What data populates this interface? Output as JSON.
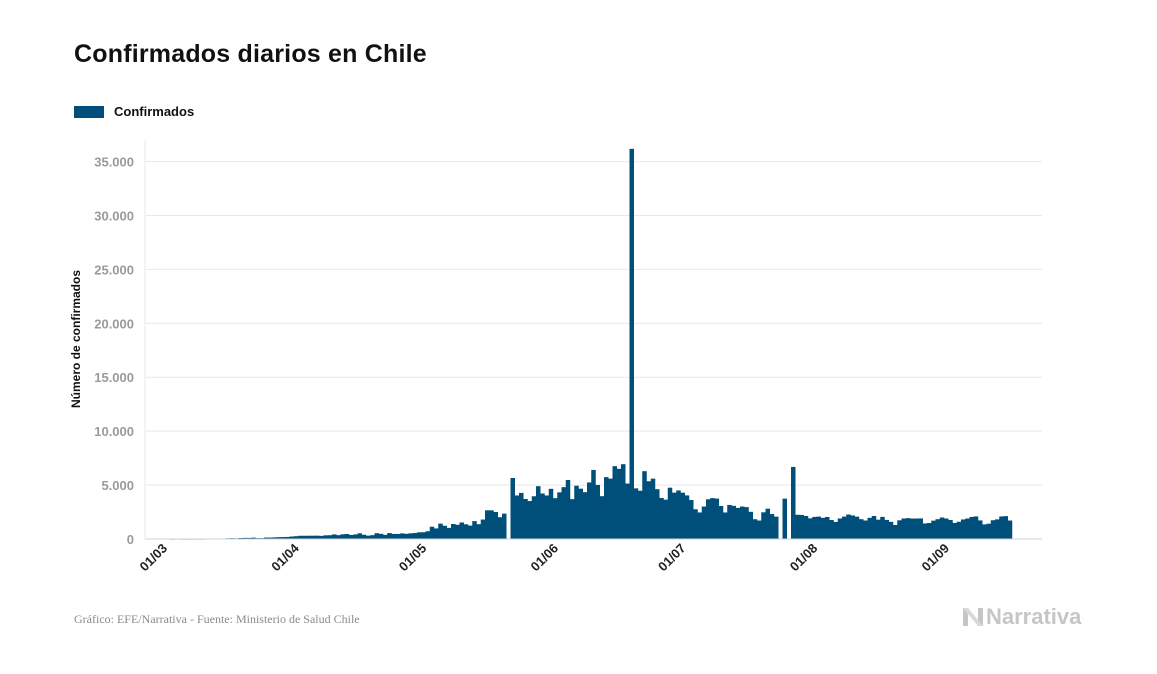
{
  "title": "Confirmados diarios en Chile",
  "footer": "Gráfico: EFE/Narrativa - Fuente: Ministerio de Salud Chile",
  "logo": "Narrativa",
  "colors": {
    "bar": "#004f7a",
    "grid": "#e8e8e8",
    "tick": "#9a9a9a",
    "logo": "#c6c6c6"
  },
  "chart_data": {
    "type": "bar",
    "ylabel": "Número de confirmados",
    "xlabel": "",
    "ylim": [
      0,
      37000
    ],
    "yticks": [
      0,
      5000,
      10000,
      15000,
      20000,
      25000,
      30000,
      35000
    ],
    "ytick_labels": [
      "0",
      "5.000",
      "10.000",
      "15.000",
      "20.000",
      "25.000",
      "30.000",
      "35.000"
    ],
    "xticks": [
      {
        "label": "01/03",
        "date": "2020-03-01"
      },
      {
        "label": "01/04",
        "date": "2020-04-01"
      },
      {
        "label": "01/05",
        "date": "2020-05-01"
      },
      {
        "label": "01/06",
        "date": "2020-06-01"
      },
      {
        "label": "01/07",
        "date": "2020-07-01"
      },
      {
        "label": "01/08",
        "date": "2020-08-01"
      },
      {
        "label": "01/09",
        "date": "2020-09-01"
      }
    ],
    "grid": true,
    "legend": "top-left",
    "series": [
      {
        "name": "Confirmados",
        "start_date": "2020-03-03",
        "values": [
          1,
          0,
          3,
          1,
          2,
          6,
          3,
          4,
          10,
          20,
          20,
          35,
          46,
          65,
          75,
          61,
          92,
          107,
          100,
          125,
          80,
          83,
          132,
          135,
          150,
          170,
          180,
          190,
          230,
          259,
          299,
          300,
          303,
          306,
          309,
          291,
          340,
          353,
          426,
          358,
          436,
          463,
          373,
          426,
          529,
          392,
          308,
          357,
          539,
          482,
          387,
          552,
          471,
          473,
          519,
          482,
          529,
          552,
          620,
          627,
          718,
          1138,
          982,
          1427,
          1228,
          1032,
          1391,
          1318,
          1533,
          1364,
          1247,
          1658,
          1373,
          1804,
          2660,
          2659,
          2502,
          2021,
          2353,
          0,
          5659,
          4038,
          4276,
          3709,
          3520,
          3964,
          4895,
          4220,
          4038,
          4654,
          3786,
          4328,
          4808,
          5471,
          3695,
          4942,
          4664,
          4342,
          5246,
          6405,
          5013,
          3970,
          5737,
          5596,
          6754,
          6509,
          6938,
          5143,
          36179,
          4696,
          4475,
          6290,
          5355,
          5596,
          4618,
          3804,
          3649,
          4757,
          4296,
          4502,
          4296,
          4041,
          3613,
          2757,
          2462,
          3012,
          3685,
          3794,
          3749,
          3058,
          2462,
          3158,
          3075,
          2884,
          3012,
          2957,
          2521,
          1836,
          1712,
          2476,
          2811,
          2314,
          2073,
          0,
          3744,
          0,
          6683,
          2247,
          2236,
          2133,
          1916,
          2050,
          2077,
          1964,
          2040,
          1764,
          1585,
          1902,
          2077,
          2271,
          2182,
          2073,
          1837,
          1715,
          1964,
          2133,
          1791,
          2049,
          1772,
          1592,
          1298,
          1736,
          1901,
          1935,
          1895,
          1900,
          1908,
          1443,
          1484,
          1703,
          1836,
          1993,
          1902,
          1765,
          1488,
          1597,
          1812,
          1900,
          2047,
          2093,
          1724,
          1352,
          1418,
          1739,
          1820,
          2093,
          2119,
          1714
        ]
      }
    ]
  }
}
